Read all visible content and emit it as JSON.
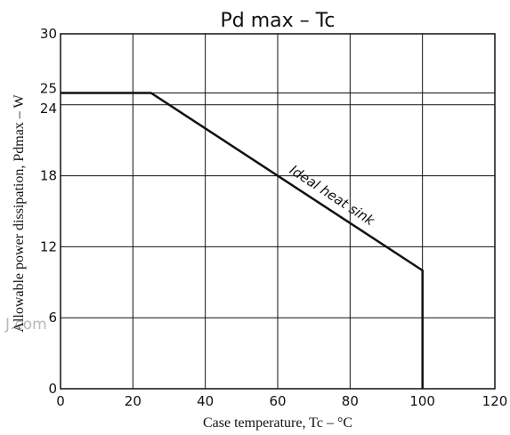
{
  "chart_data": {
    "type": "line",
    "title": "Pd max   –   Tc",
    "xlabel": "Case temperature, Tc – °C",
    "ylabel": "Allowable power dissipation, Pdmax – W",
    "xlim": [
      0,
      120
    ],
    "ylim": [
      0,
      30
    ],
    "x_ticks": [
      "0",
      "20",
      "40",
      "60",
      "80",
      "100",
      "120"
    ],
    "y_ticks": [
      "0",
      "6",
      "12",
      "18",
      "24",
      "25",
      "30"
    ],
    "grid": true,
    "series": [
      {
        "name": "Ideal heat sink",
        "x": [
          0,
          25,
          100,
          100
        ],
        "y": [
          25,
          25,
          10,
          0
        ]
      }
    ],
    "annotations": [
      {
        "text": "Ideal heat sink",
        "x": 63,
        "y": 18
      }
    ],
    "watermark": "J.com",
    "colors": {
      "line": "#111111",
      "grid": "#111111",
      "background": "#ffffff"
    }
  }
}
